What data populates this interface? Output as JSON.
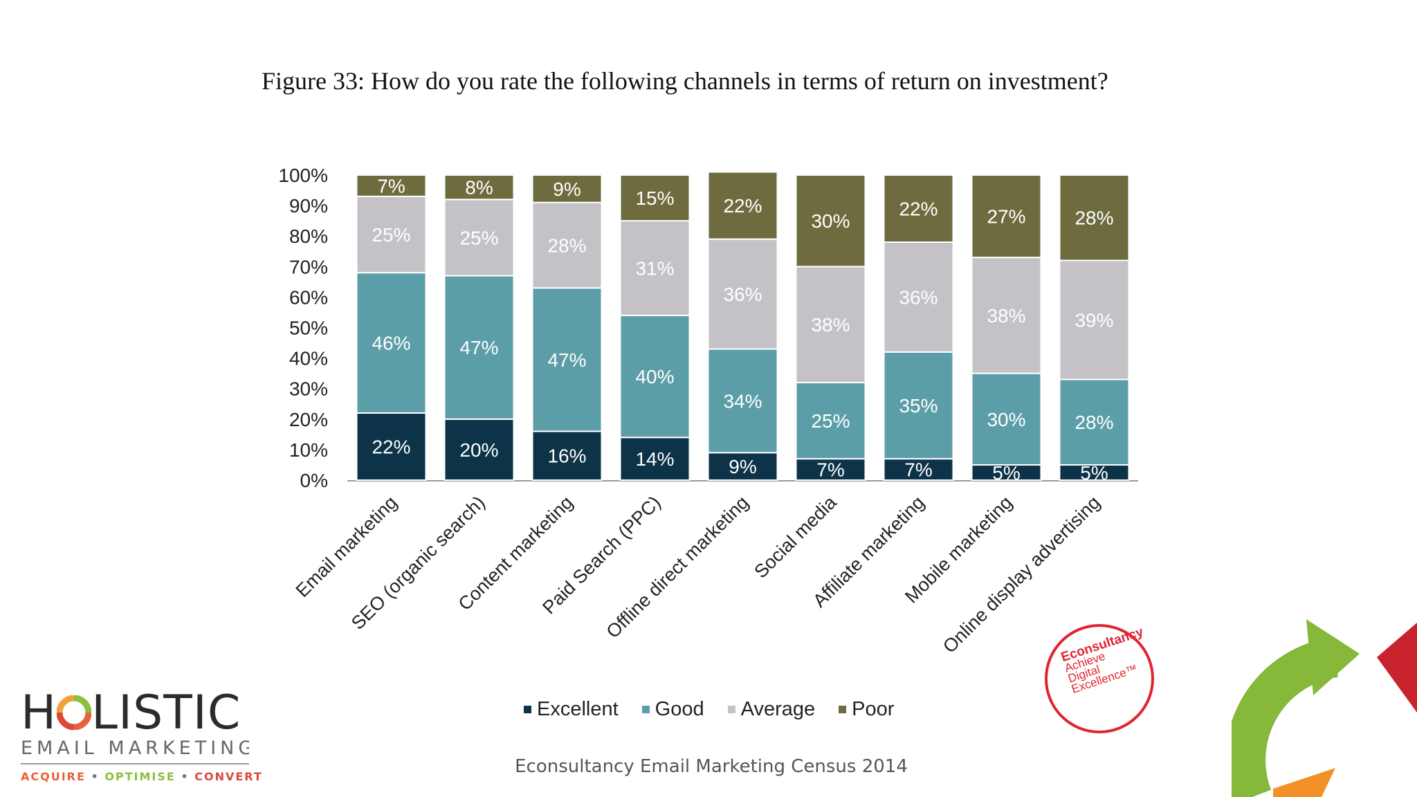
{
  "title": "Figure 33: How do you rate the following channels in terms of return on investment?",
  "footer": "Econsultancy Email Marketing Census 2014",
  "logo": {
    "main_left": "H",
    "main_right": "LISTIC",
    "sub": "EMAIL MARKETING",
    "tag_acquire": "ACQUIRE",
    "tag_optimise": "OPTIMISE",
    "tag_convert": "CONVERT",
    "tag_dot": "•"
  },
  "stamp": {
    "brand": "Econsultancy",
    "line1": "Achieve",
    "line2": "Digital",
    "line3": "Excellence™"
  },
  "colors": {
    "excellent": "#0d3349",
    "good": "#5c9ea8",
    "average": "#c4c2c6",
    "poor": "#6e6c3f",
    "excellent_label": "#ffffff",
    "good_label": "#ffffff",
    "average_label": "#ffffff",
    "poor_label": "#ffffff"
  },
  "chart_data": {
    "type": "bar",
    "stacked": true,
    "categories": [
      "Email marketing",
      "SEO (organic search)",
      "Content marketing",
      "Paid Search (PPC)",
      "Offline direct marketing",
      "Social media",
      "Affiliate marketing",
      "Mobile marketing",
      "Online display advertising"
    ],
    "series": [
      {
        "name": "Excellent",
        "values": [
          22,
          20,
          16,
          14,
          9,
          7,
          7,
          5,
          5
        ]
      },
      {
        "name": "Good",
        "values": [
          46,
          47,
          47,
          40,
          34,
          25,
          35,
          30,
          28
        ]
      },
      {
        "name": "Average",
        "values": [
          25,
          25,
          28,
          31,
          36,
          38,
          36,
          38,
          39
        ]
      },
      {
        "name": "Poor",
        "values": [
          7,
          8,
          9,
          15,
          22,
          30,
          22,
          27,
          28
        ]
      }
    ],
    "y_ticks": [
      "0%",
      "10%",
      "20%",
      "30%",
      "40%",
      "50%",
      "60%",
      "70%",
      "80%",
      "90%",
      "100%"
    ],
    "ylim": [
      0,
      100
    ],
    "value_suffix": "%",
    "legend_position": "bottom",
    "grid": false
  }
}
